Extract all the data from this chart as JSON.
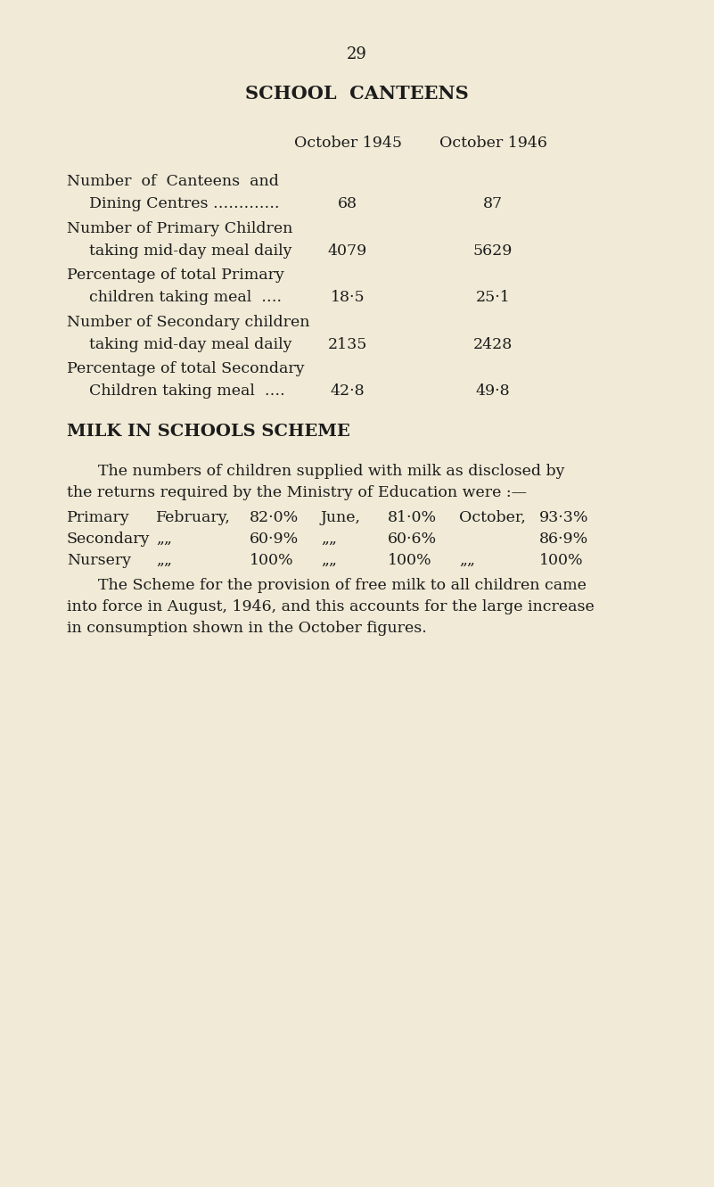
{
  "background_color": "#f0ead6",
  "page_number": "29",
  "title": "SCHOOL  CANTEENS",
  "col_header_1": "October 1945",
  "col_header_2": "October 1946",
  "table_rows": [
    {
      "label_line1": "Number  of  Canteens  and",
      "label_line2": "Dining Centres ………….",
      "val1": "68",
      "val2": "87"
    },
    {
      "label_line1": "Number of Primary Children",
      "label_line2": "taking mid-day meal daily",
      "val1": "4079",
      "val2": "5629"
    },
    {
      "label_line1": "Percentage of total Primary",
      "label_line2": "children taking meal  ….",
      "val1": "18·5",
      "val2": "25·1"
    },
    {
      "label_line1": "Number of Secondary children",
      "label_line2": "taking mid-day meal daily",
      "val1": "2135",
      "val2": "2428"
    },
    {
      "label_line1": "Percentage of total Secondary",
      "label_line2": "Children taking meal  ….",
      "val1": "42·8",
      "val2": "49·8"
    }
  ],
  "milk_heading": "MILK IN SCHOOLS SCHEME",
  "milk_intro_line1": "The numbers of children supplied with milk as disclosed by",
  "milk_intro_line2": "the returns required by the Ministry of Education were :—",
  "milk_rows": [
    {
      "category": "Primary",
      "col1_label": "February,",
      "col1_val": "82·0%",
      "col2_label": "June,",
      "col2_val": "81·0%",
      "col3_label": "October,",
      "col3_val": "93·3%"
    },
    {
      "category": "Secondary",
      "col1_label": "„„",
      "col1_val": "60·9%",
      "col2_label": "„„",
      "col2_val": "60·6%",
      "col3_label": "",
      "col3_val": "86·9%"
    },
    {
      "category": "Nursery",
      "col1_label": "„„",
      "col1_val": "100%",
      "col2_label": "„„",
      "col2_val": "100%",
      "col3_label": "„„",
      "col3_val": "100%"
    }
  ],
  "milk_closing_line1": "The Scheme for the provision of free milk to all children came",
  "milk_closing_line2": "into force in August, 1946, and this accounts for the large increase",
  "milk_closing_line3": "in consumption shown in the October figures.",
  "text_color": "#1c1c1c",
  "font_size_page": 13,
  "font_size_title": 15,
  "font_size_body": 12.5,
  "font_size_milk_heading": 14
}
